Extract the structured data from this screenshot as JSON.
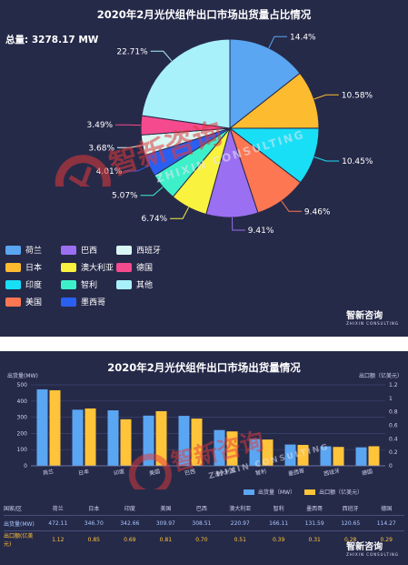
{
  "pie_panel": {
    "title": "2020年2月光伏组件出口市场出货量占比情况",
    "total": "总量: 3278.17 MW"
  },
  "bar_panel": {
    "title": "2020年2月光伏组件出口市场出货量情况",
    "y_left_name": "出货量(MW)",
    "y_right_name": "出口额（亿美元）",
    "legend_ship": "出货量（MW）",
    "legend_amount": "出口额（亿美元）",
    "row_header": "国家/区",
    "row_ship": "出货量(MW)",
    "row_amount": "出口额(亿美元)"
  },
  "brand": {
    "name": "智新咨询",
    "sub": "ZHIXIN CONSULTING"
  },
  "watermark": {
    "name": "智新咨询",
    "sub": "ZHIXIN CONSULTING"
  },
  "chart_data": [
    {
      "type": "pie",
      "title": "2020年2月光伏组件出口市场出货量占比情况",
      "total_label": "总量: 3278.17 MW",
      "start": "top",
      "direction": "clockwise",
      "legend_position": "bottom-left",
      "slices": [
        {
          "label": "荷兰",
          "percent": 14.4,
          "value_label": "14.4%",
          "color": "#5aa6f2"
        },
        {
          "label": "日本",
          "percent": 10.58,
          "value_label": "10.58%",
          "color": "#fdbb2f"
        },
        {
          "label": "印度",
          "percent": 10.45,
          "value_label": "10.45%",
          "color": "#18dff6"
        },
        {
          "label": "美国",
          "percent": 9.46,
          "value_label": "9.46%",
          "color": "#fd7752"
        },
        {
          "label": "巴西",
          "percent": 9.41,
          "value_label": "9.41%",
          "color": "#9b6ff2"
        },
        {
          "label": "澳大利亚",
          "percent": 6.74,
          "value_label": "6.74%",
          "color": "#f9f23e"
        },
        {
          "label": "智利",
          "percent": 5.07,
          "value_label": "5.07%",
          "color": "#3ef0c9"
        },
        {
          "label": "墨西哥",
          "percent": 4.01,
          "value_label": "4.01%",
          "color": "#2a5ff0"
        },
        {
          "label": "西班牙",
          "percent": 3.68,
          "value_label": "3.68%",
          "color": "#d9f7f3"
        },
        {
          "label": "德国",
          "percent": 3.49,
          "value_label": "3.49%",
          "color": "#f54b8e"
        },
        {
          "label": "其他",
          "percent": 22.71,
          "value_label": "22.71%",
          "color": "#a8f1fb"
        }
      ]
    },
    {
      "type": "bar",
      "title": "2020年2月光伏组件出口市场出货量情况",
      "categories": [
        "荷兰",
        "日本",
        "印度",
        "美国",
        "巴西",
        "澳大利亚",
        "智利",
        "墨西哥",
        "西班牙",
        "德国"
      ],
      "series": [
        {
          "name": "出货量（MW）",
          "axis": "left",
          "color": "#5aa6f2",
          "values": [
            472.11,
            346.7,
            342.66,
            309.97,
            308.51,
            220.97,
            166.11,
            131.59,
            120.65,
            114.27
          ],
          "labels": [
            "472.11",
            "346.70",
            "342.66",
            "309.97",
            "308.51",
            "220.97",
            "166.11",
            "131.59",
            "120.65",
            "114.27"
          ]
        },
        {
          "name": "出口额（亿美元）",
          "axis": "right",
          "color": "#ffc43a",
          "values": [
            1.12,
            0.85,
            0.69,
            0.81,
            0.7,
            0.51,
            0.39,
            0.31,
            0.28,
            0.29
          ],
          "labels": [
            "1.12",
            "0.85",
            "0.69",
            "0.81",
            "0.70",
            "0.51",
            "0.39",
            "0.31",
            "0.28",
            "0.29"
          ]
        }
      ],
      "ylabel": "出货量(MW)",
      "y2label": "出口额（亿美元）",
      "ylim": [
        0,
        500
      ],
      "y2lim": [
        0,
        1.2
      ],
      "yticks": [
        "0",
        "100",
        "200",
        "300",
        "400",
        "500"
      ],
      "y2ticks": [
        "0",
        "0.2",
        "0.4",
        "0.6",
        "0.8",
        "1",
        "1.2"
      ],
      "grid": true,
      "legend_position": "bottom-right"
    }
  ]
}
